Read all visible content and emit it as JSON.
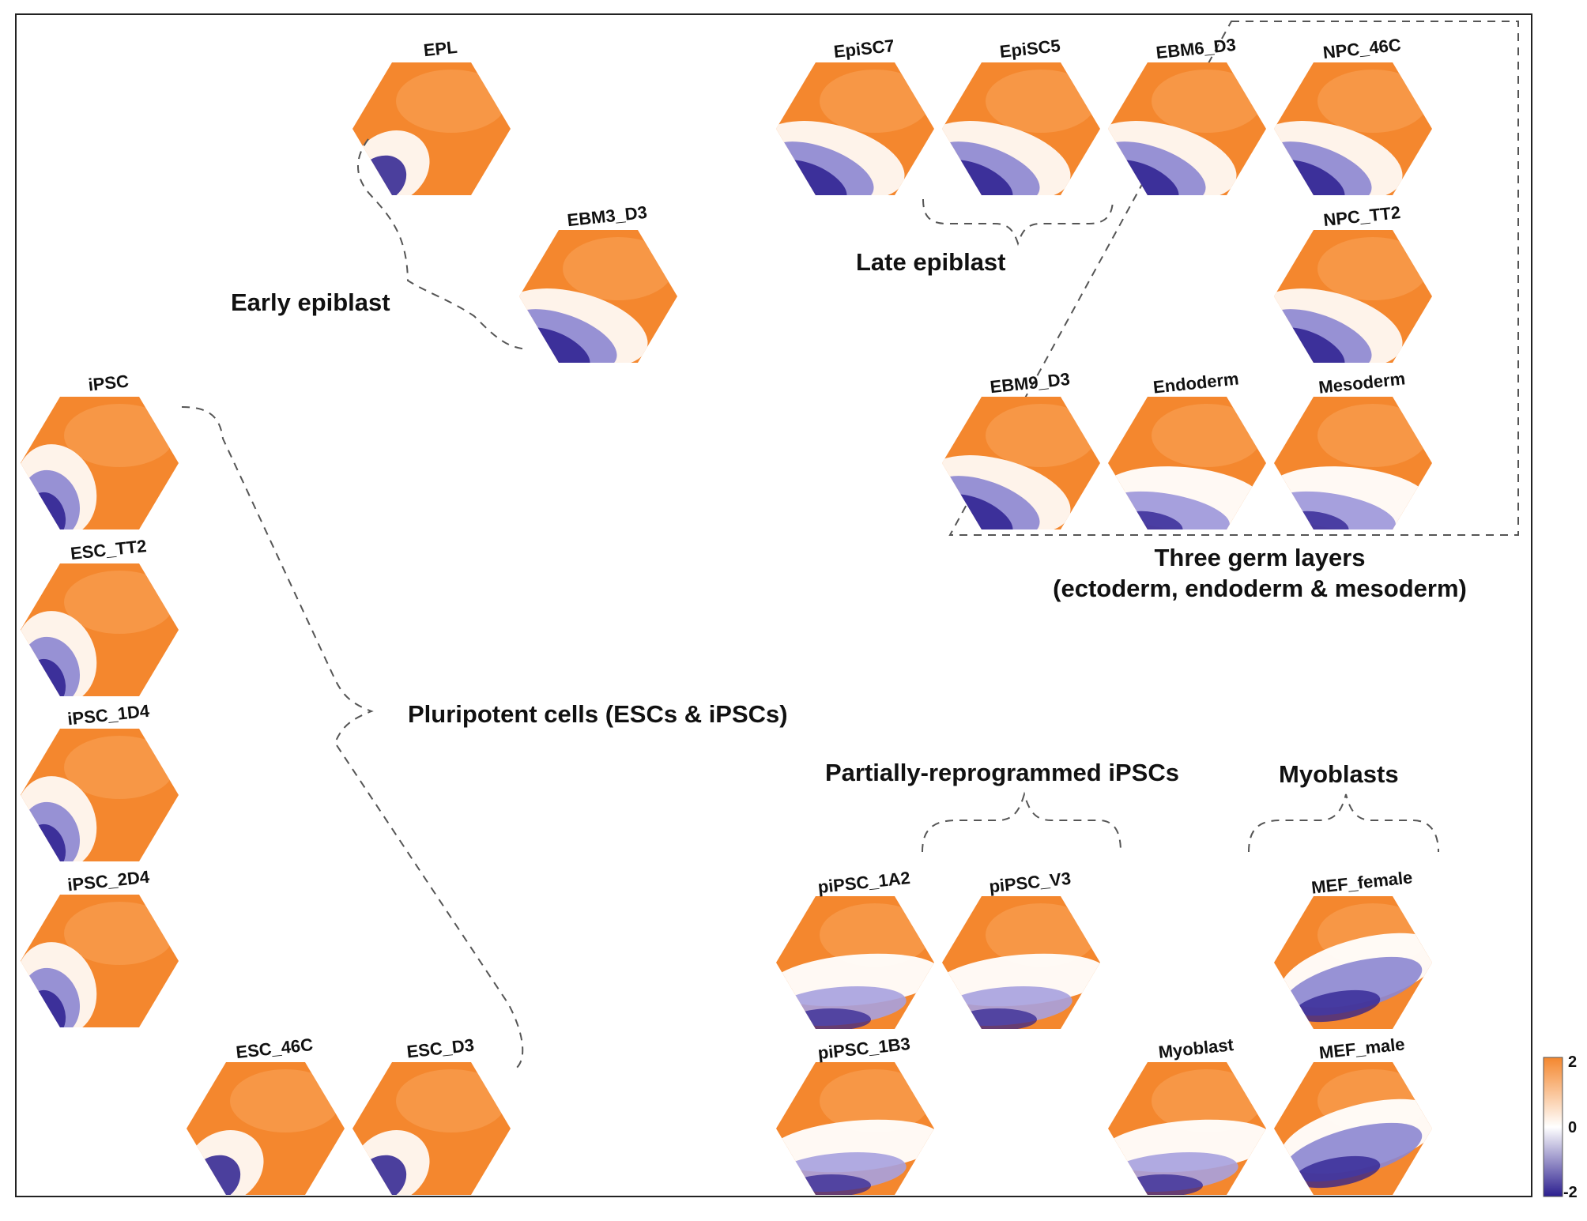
{
  "colors": {
    "high": "#F4872E",
    "mid": "#FFFFFF",
    "low": "#2B1E8F",
    "frame": "#222222",
    "bracket": "#555555"
  },
  "colorbar": {
    "max": "2",
    "mid": "0",
    "min": "-2"
  },
  "panels": [
    {
      "id": "EPL",
      "label": "EPL",
      "cool": "bl-small"
    },
    {
      "id": "EBM3_D3",
      "label": "EBM3_D3",
      "cool": "bl-diag"
    },
    {
      "id": "EpiSC7",
      "label": "EpiSC7",
      "cool": "bl-diag"
    },
    {
      "id": "EpiSC5",
      "label": "EpiSC5",
      "cool": "bl-diag"
    },
    {
      "id": "EBM6_D3",
      "label": "EBM6_D3",
      "cool": "bl-diag"
    },
    {
      "id": "NPC_46C",
      "label": "NPC_46C",
      "cool": "bl-diag"
    },
    {
      "id": "NPC_TT2",
      "label": "NPC_TT2",
      "cool": "bl-diag"
    },
    {
      "id": "EBM9_D3",
      "label": "EBM9_D3",
      "cool": "bl-diag"
    },
    {
      "id": "Endoderm",
      "label": "Endoderm",
      "cool": "bl-wide"
    },
    {
      "id": "Mesoderm",
      "label": "Mesoderm",
      "cool": "bl-wide"
    },
    {
      "id": "iPSC",
      "label": "iPSC",
      "cool": "bl-left"
    },
    {
      "id": "ESC_TT2",
      "label": "ESC_TT2",
      "cool": "bl-left"
    },
    {
      "id": "iPSC_1D4",
      "label": "iPSC_1D4",
      "cool": "bl-left"
    },
    {
      "id": "iPSC_2D4",
      "label": "iPSC_2D4",
      "cool": "bl-left"
    },
    {
      "id": "ESC_46C",
      "label": "ESC_46C",
      "cool": "bl-small"
    },
    {
      "id": "ESC_D3",
      "label": "ESC_D3",
      "cool": "bl-small"
    },
    {
      "id": "piPSC_1A2",
      "label": "piPSC_1A2",
      "cool": "band"
    },
    {
      "id": "piPSC_V3",
      "label": "piPSC_V3",
      "cool": "band"
    },
    {
      "id": "piPSC_1B3",
      "label": "piPSC_1B3",
      "cool": "band"
    },
    {
      "id": "MEF_female",
      "label": "MEF_female",
      "cool": "mef"
    },
    {
      "id": "Myoblast",
      "label": "Myoblast",
      "cool": "band"
    },
    {
      "id": "MEF_male",
      "label": "MEF_male",
      "cool": "mef"
    }
  ],
  "groups": {
    "early_epiblast": "Early epiblast",
    "late_epiblast": "Late epiblast",
    "germ_line1": "Three germ layers",
    "germ_line2": "(ectoderm, endoderm & mesoderm)",
    "pluripotent": "Pluripotent cells (ESCs & iPSCs)",
    "partial": "Partially-reprogrammed iPSCs",
    "myoblasts": "Myoblasts"
  }
}
